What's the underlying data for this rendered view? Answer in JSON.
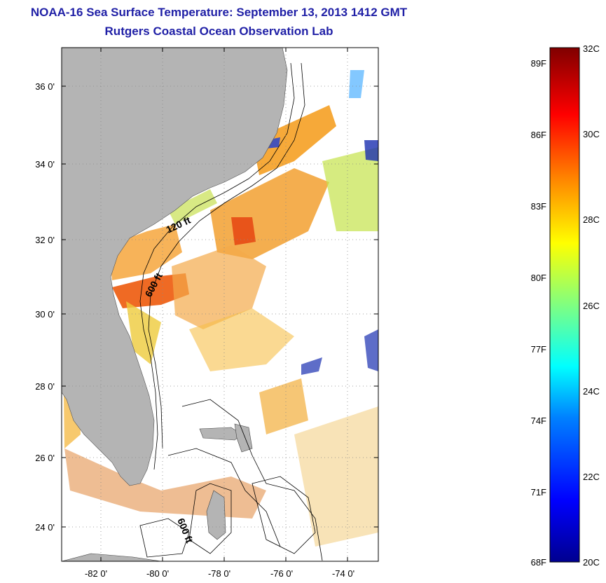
{
  "title": {
    "line1": "NOAA-16 Sea Surface Temperature:  September 13, 2013 1412 GMT",
    "line2": "Rutgers Coastal Ocean Observation Lab"
  },
  "map": {
    "lat_labels": [
      "36 0'",
      "34 0'",
      "32 0'",
      "30 0'",
      "28 0'",
      "26 0'",
      "24 0'"
    ],
    "lon_labels": [
      "-82 0'",
      "-80 0'",
      "-78 0'",
      "-76 0'",
      "-74 0'"
    ],
    "contour_labels": [
      "120 ft",
      "600 ft",
      "600 ft"
    ],
    "land_color": "#b4b4b4",
    "grid": "dotted"
  },
  "colorbar": {
    "fahrenheit_labels": [
      "89F",
      "86F",
      "83F",
      "80F",
      "77F",
      "74F",
      "71F",
      "68F"
    ],
    "celsius_labels": [
      "32C",
      "30C",
      "28C",
      "26C",
      "24C",
      "22C",
      "20C"
    ],
    "range_c": [
      20,
      32
    ]
  }
}
